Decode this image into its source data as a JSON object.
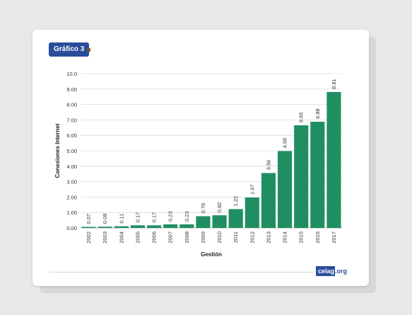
{
  "badge": {
    "label": "Gráfico 3"
  },
  "logo": {
    "box_text": "celag",
    "suffix": ".org"
  },
  "colors": {
    "accent": "#2a4d9b",
    "bar": "#1f8f62",
    "mark": "#7a5a2e",
    "logo_text": "#2a4d9b"
  },
  "chart_data": {
    "type": "bar",
    "title": "",
    "xlabel": "Gestión",
    "ylabel": "Conexiones Internet",
    "ylim": [
      0,
      10
    ],
    "yticks": [
      "0.00",
      "1.00",
      "2.00",
      "3.00",
      "4.00",
      "5.00",
      "6.00",
      "7.00",
      "8.00",
      "9.00",
      "10.0"
    ],
    "grid": true,
    "categories": [
      "2002",
      "2003",
      "2004",
      "2005",
      "2006",
      "2007",
      "2008",
      "2009",
      "2010",
      "2011",
      "2012",
      "2013",
      "2014",
      "2015",
      "2016",
      "2017"
    ],
    "values": [
      0.07,
      0.08,
      0.11,
      0.17,
      0.17,
      0.23,
      0.23,
      0.76,
      0.82,
      1.22,
      1.97,
      3.56,
      4.98,
      6.65,
      6.88,
      8.81
    ],
    "value_labels": [
      "0.07",
      "0.08",
      "0.11",
      "0.17",
      "0.17",
      "0.23",
      "0.23",
      "0.76",
      "0.82",
      "1.22",
      "1.97",
      "3.56",
      "4.98",
      "6.65",
      "6.88",
      "8.81"
    ]
  }
}
